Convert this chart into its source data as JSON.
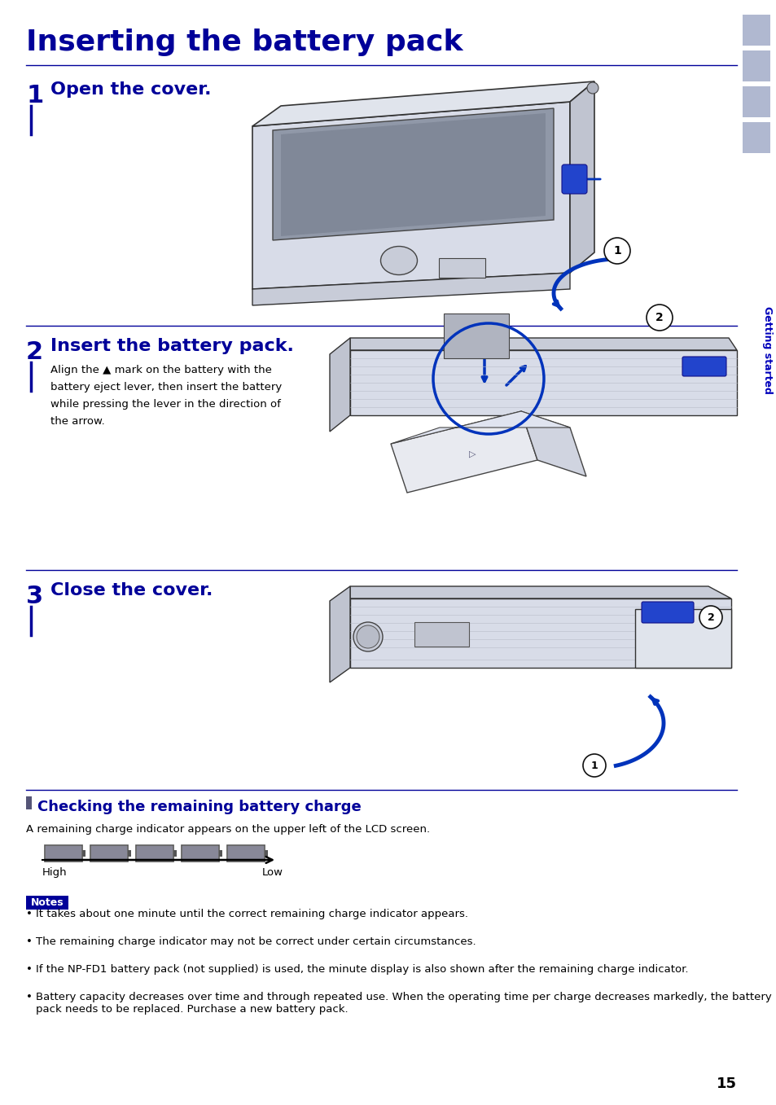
{
  "title": "Inserting the battery pack",
  "title_color": "#000099",
  "title_fontsize": 26,
  "bg_color": "#ffffff",
  "sidebar_color": "#b0b8d0",
  "sidebar_text": "Getting started",
  "sidebar_text_color": "#0000bb",
  "step1_num": "1",
  "step1_text": "Open the cover.",
  "step2_num": "2",
  "step2_text": "Insert the battery pack.",
  "step2_body": "Align the ▲ mark on the battery with the\nbattery eject lever, then insert the battery\nwhile pressing the lever in the direction of\nthe arrow.",
  "step3_num": "3",
  "step3_text": "Close the cover.",
  "section_bullet_color": "#555577",
  "section_title": "Checking the remaining battery charge",
  "section_title_color": "#000099",
  "section_body": "A remaining charge indicator appears on the upper left of the LCD screen.",
  "battery_high_label": "High",
  "battery_low_label": "Low",
  "notes_label": "Notes",
  "notes_bg": "#000099",
  "notes_text_color": "#ffffff",
  "note1": "It takes about one minute until the correct remaining charge indicator appears.",
  "note2": "The remaining charge indicator may not be correct under certain circumstances.",
  "note3": "If the NP-FD1 battery pack (not supplied) is used, the minute display is also shown after the remaining charge indicator.",
  "note4": "Battery capacity decreases over time and through repeated use. When the operating time per charge decreases markedly, the battery pack needs to be replaced. Purchase a new battery pack.",
  "page_num": "15",
  "divider_color": "#000099",
  "step_num_color": "#000099",
  "step_text_color": "#000099",
  "body_text_color": "#000000",
  "body_fontsize": 9.5,
  "step_num_fontsize": 22,
  "step_text_fontsize": 16
}
